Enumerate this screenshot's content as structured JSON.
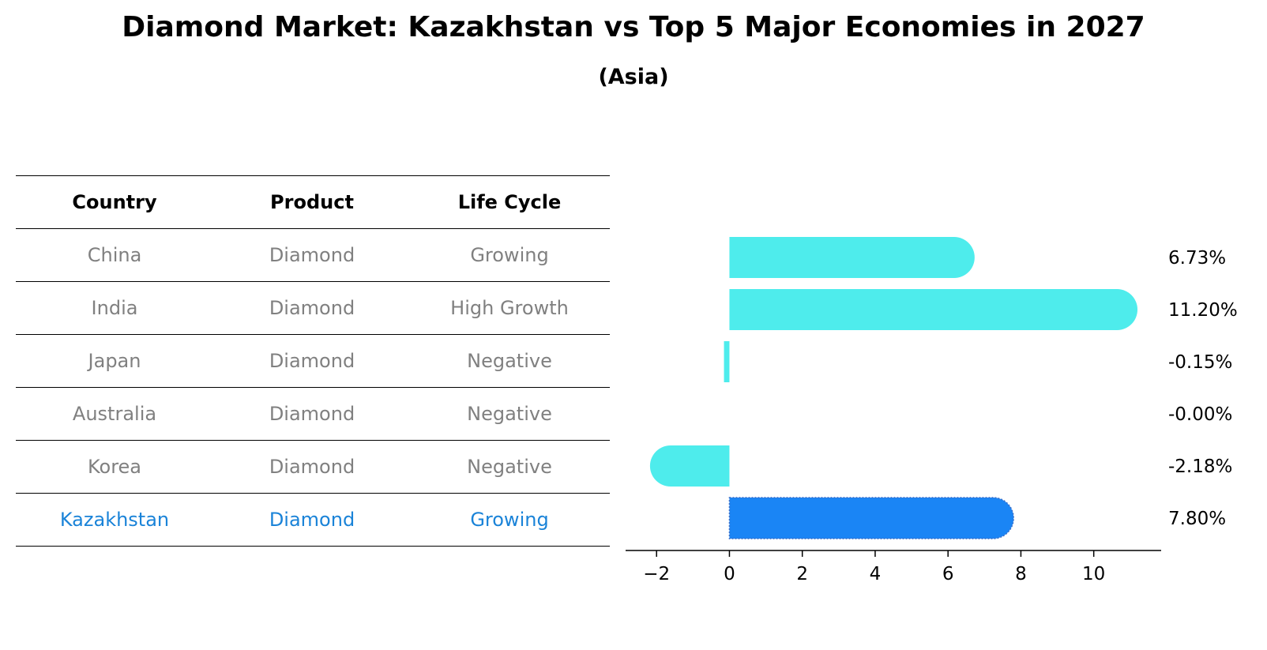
{
  "title": "Diamond Market: Kazakhstan vs Top 5 Major Economies in 2027",
  "subtitle": "(Asia)",
  "table": {
    "headers": [
      "Country",
      "Product",
      "Life Cycle"
    ],
    "rows": [
      [
        "China",
        "Diamond",
        "Growing"
      ],
      [
        "India",
        "Diamond",
        "High Growth"
      ],
      [
        "Japan",
        "Diamond",
        "Negative"
      ],
      [
        "Australia",
        "Diamond",
        "Negative"
      ],
      [
        "Korea",
        "Diamond",
        "Negative"
      ],
      [
        "Kazakhstan",
        "Diamond",
        "Growing"
      ]
    ],
    "highlight_row": "Kazakhstan"
  },
  "chart_data": {
    "type": "bar",
    "orientation": "horizontal",
    "categories": [
      "China",
      "India",
      "Japan",
      "Australia",
      "Korea",
      "Kazakhstan"
    ],
    "values": [
      6.73,
      11.2,
      -0.15,
      -0.0,
      -2.18,
      7.8
    ],
    "data_labels": [
      "6.73%",
      "11.20%",
      "-0.15%",
      "-0.00%",
      "-2.18%",
      "7.80%"
    ],
    "xticks": [
      -2,
      0,
      2,
      4,
      6,
      8,
      10
    ],
    "xtick_labels": [
      "−2",
      "0",
      "2",
      "4",
      "6",
      "8",
      "10"
    ],
    "xlim": [
      -2.85,
      11.85
    ],
    "grid": false,
    "colors": {
      "bar": "#4eecec",
      "highlight": "#1a85f5"
    }
  }
}
